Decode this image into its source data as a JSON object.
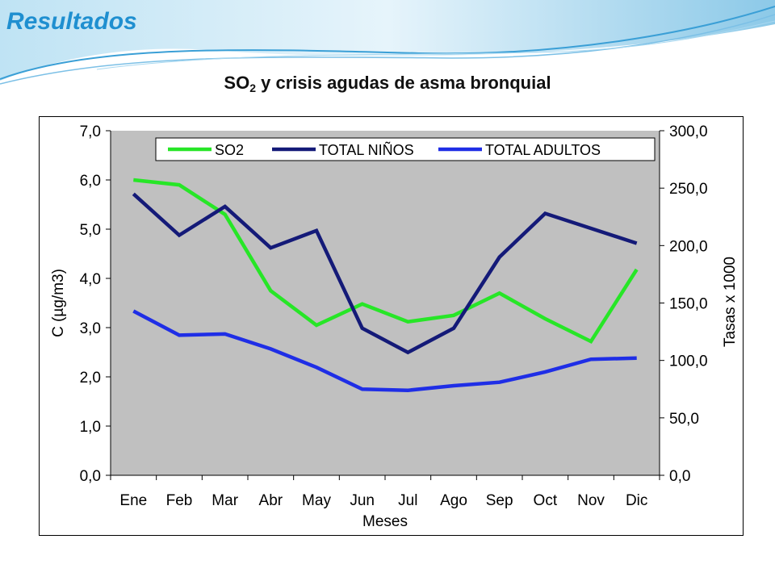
{
  "slide_title": "Resultados",
  "heading": {
    "main": "SO",
    "sub": "2",
    "rest": " y crisis agudas de asma bronquial"
  },
  "colors": {
    "so2": "#27e627",
    "total_ninos": "#141a78",
    "total_adultos": "#1f2ee6",
    "plot_bg": "#c0c0c0",
    "title": "#1f8fd0"
  },
  "chart_data": {
    "type": "line",
    "title": "SO2 y crisis agudas de asma bronquial",
    "xlabel": "Meses",
    "ylabel_left": "C (µg/m3)",
    "ylabel_right": "Tasas x 1000",
    "categories": [
      "Ene",
      "Feb",
      "Mar",
      "Abr",
      "May",
      "Jun",
      "Jul",
      "Ago",
      "Sep",
      "Oct",
      "Nov",
      "Dic"
    ],
    "ylim_left": [
      0,
      7
    ],
    "yticks_left": [
      "0,0",
      "1,0",
      "2,0",
      "3,0",
      "4,0",
      "5,0",
      "6,0",
      "7,0"
    ],
    "ylim_right": [
      0,
      300
    ],
    "yticks_right": [
      "0,0",
      "50,0",
      "100,0",
      "150,0",
      "200,0",
      "250,0",
      "300,0"
    ],
    "legend_position": "top",
    "grid": false,
    "series": [
      {
        "name": "SO2",
        "axis": "left",
        "color_key": "so2",
        "values": [
          6.0,
          5.9,
          5.3,
          3.75,
          3.05,
          3.48,
          3.12,
          3.25,
          3.7,
          3.18,
          2.72,
          4.18
        ]
      },
      {
        "name": "TOTAL NIÑOS",
        "axis": "right",
        "color_key": "total_ninos",
        "values": [
          245,
          209,
          234,
          198,
          213,
          128,
          107,
          128,
          190,
          228,
          215,
          202
        ]
      },
      {
        "name": "TOTAL ADULTOS",
        "axis": "right",
        "color_key": "total_adultos",
        "values": [
          143,
          122,
          123,
          110,
          94,
          75,
          74,
          78,
          81,
          90,
          101,
          102
        ]
      }
    ]
  }
}
